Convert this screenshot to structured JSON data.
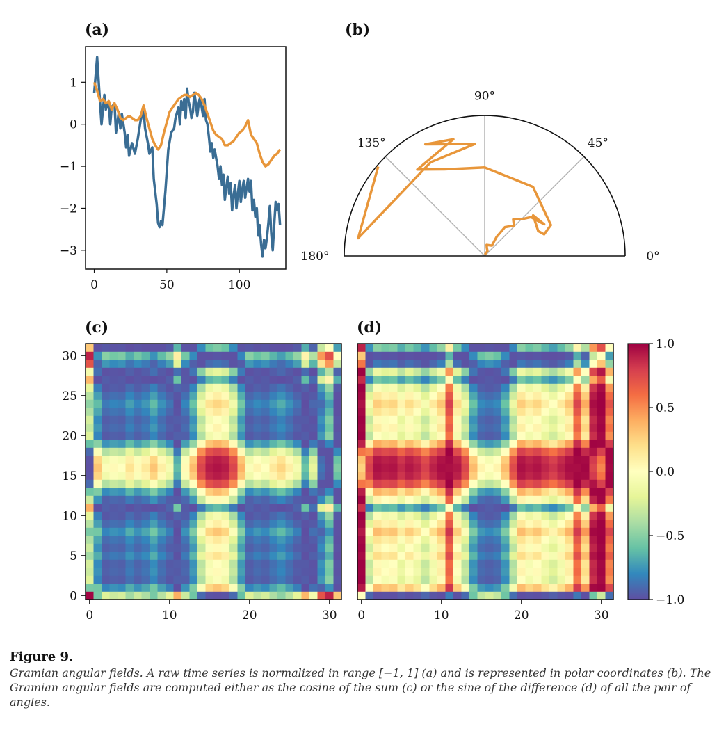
{
  "caption": {
    "title": "Figure 9.",
    "text": "Gramian angular fields. A raw time series is normalized in range [−1, 1] (a) and is represented in polar coordinates (b). The Gramian angular fields are computed either as the cosine of the sum (c) or the sine of the difference (d) of all the pair of angles."
  },
  "chart_data": [
    {
      "id": "a",
      "panel_label": "(a)",
      "type": "line",
      "xlim": [
        -6,
        132
      ],
      "ylim": [
        -3.45,
        1.85
      ],
      "xticks": [
        0,
        50,
        100
      ],
      "yticks": [
        1,
        0,
        -1,
        -2,
        -3
      ],
      "xtick_labels": [
        "0",
        "50",
        "100"
      ],
      "ytick_labels": [
        "1",
        "0",
        "−1",
        "−2",
        "−3"
      ],
      "series": [
        {
          "color": "#3a6d94",
          "points": [
            [
              0,
              0.75
            ],
            [
              2,
              1.6
            ],
            [
              4,
              0.5
            ],
            [
              5,
              0.0
            ],
            [
              7,
              0.7
            ],
            [
              8,
              0.35
            ],
            [
              10,
              0.55
            ],
            [
              11,
              0.0
            ],
            [
              12,
              0.4
            ],
            [
              14,
              0.5
            ],
            [
              15,
              -0.2
            ],
            [
              17,
              0.3
            ],
            [
              18,
              -0.1
            ],
            [
              19,
              0.25
            ],
            [
              21,
              -0.2
            ],
            [
              22,
              -0.55
            ],
            [
              23,
              -0.25
            ],
            [
              24,
              -0.75
            ],
            [
              26,
              -0.45
            ],
            [
              28,
              -0.7
            ],
            [
              30,
              -0.35
            ],
            [
              32,
              0.1
            ],
            [
              34,
              0.35
            ],
            [
              35,
              -0.1
            ],
            [
              37,
              -0.45
            ],
            [
              38,
              -0.7
            ],
            [
              40,
              -0.55
            ],
            [
              41,
              -1.3
            ],
            [
              43,
              -1.9
            ],
            [
              44,
              -2.35
            ],
            [
              45,
              -2.45
            ],
            [
              46,
              -2.3
            ],
            [
              47,
              -2.4
            ],
            [
              48,
              -2.0
            ],
            [
              49,
              -1.6
            ],
            [
              50,
              -1.1
            ],
            [
              51,
              -0.6
            ],
            [
              53,
              -0.2
            ],
            [
              55,
              -0.1
            ],
            [
              56,
              0.15
            ],
            [
              58,
              0.4
            ],
            [
              59,
              0.0
            ],
            [
              60,
              0.55
            ],
            [
              61,
              0.35
            ],
            [
              62,
              0.6
            ],
            [
              63,
              0.15
            ],
            [
              64,
              0.85
            ],
            [
              65,
              0.55
            ],
            [
              66,
              0.4
            ],
            [
              67,
              0.15
            ],
            [
              68,
              0.3
            ],
            [
              69,
              0.75
            ],
            [
              70,
              0.5
            ],
            [
              71,
              0.2
            ],
            [
              72,
              0.5
            ],
            [
              73,
              0.65
            ],
            [
              74,
              0.4
            ],
            [
              75,
              0.2
            ],
            [
              76,
              0.6
            ],
            [
              77,
              0.1
            ],
            [
              78,
              0.0
            ],
            [
              79,
              -0.3
            ],
            [
              80,
              -0.65
            ],
            [
              81,
              -0.45
            ],
            [
              82,
              -0.8
            ],
            [
              83,
              -0.6
            ],
            [
              85,
              -1.0
            ],
            [
              86,
              -1.3
            ],
            [
              87,
              -1.0
            ],
            [
              88,
              -1.45
            ],
            [
              89,
              -1.2
            ],
            [
              90,
              -1.8
            ],
            [
              91,
              -1.5
            ],
            [
              92,
              -1.25
            ],
            [
              93,
              -1.65
            ],
            [
              94,
              -1.4
            ],
            [
              95,
              -2.05
            ],
            [
              96,
              -1.7
            ],
            [
              97,
              -1.45
            ],
            [
              98,
              -2.0
            ],
            [
              99,
              -1.65
            ],
            [
              100,
              -1.35
            ],
            [
              101,
              -1.85
            ],
            [
              102,
              -1.55
            ],
            [
              103,
              -1.35
            ],
            [
              104,
              -1.75
            ],
            [
              105,
              -1.5
            ],
            [
              106,
              -1.3
            ],
            [
              107,
              -1.6
            ],
            [
              108,
              -1.35
            ],
            [
              109,
              -2.05
            ],
            [
              110,
              -1.8
            ],
            [
              111,
              -2.2
            ],
            [
              112,
              -2.0
            ],
            [
              113,
              -2.65
            ],
            [
              114,
              -2.4
            ],
            [
              115,
              -2.85
            ],
            [
              116,
              -3.15
            ],
            [
              117,
              -2.75
            ],
            [
              118,
              -2.95
            ],
            [
              119,
              -2.7
            ],
            [
              120,
              -2.35
            ],
            [
              121,
              -1.95
            ],
            [
              122,
              -2.6
            ],
            [
              123,
              -3.0
            ],
            [
              124,
              -2.4
            ],
            [
              125,
              -1.85
            ],
            [
              126,
              -2.05
            ],
            [
              127,
              -1.9
            ],
            [
              128,
              -2.4
            ]
          ]
        },
        {
          "color": "#e8963a",
          "points": [
            [
              0,
              1.0
            ],
            [
              2,
              0.8
            ],
            [
              4,
              0.55
            ],
            [
              6,
              0.6
            ],
            [
              8,
              0.5
            ],
            [
              10,
              0.55
            ],
            [
              12,
              0.35
            ],
            [
              14,
              0.5
            ],
            [
              16,
              0.35
            ],
            [
              18,
              0.15
            ],
            [
              20,
              0.1
            ],
            [
              22,
              0.15
            ],
            [
              24,
              0.2
            ],
            [
              26,
              0.15
            ],
            [
              28,
              0.1
            ],
            [
              30,
              0.1
            ],
            [
              32,
              0.2
            ],
            [
              34,
              0.45
            ],
            [
              36,
              0.15
            ],
            [
              38,
              -0.1
            ],
            [
              40,
              -0.35
            ],
            [
              42,
              -0.5
            ],
            [
              44,
              -0.6
            ],
            [
              46,
              -0.5
            ],
            [
              48,
              -0.2
            ],
            [
              50,
              0.05
            ],
            [
              52,
              0.3
            ],
            [
              54,
              0.4
            ],
            [
              56,
              0.5
            ],
            [
              58,
              0.6
            ],
            [
              60,
              0.65
            ],
            [
              62,
              0.7
            ],
            [
              64,
              0.7
            ],
            [
              66,
              0.65
            ],
            [
              68,
              0.7
            ],
            [
              70,
              0.75
            ],
            [
              72,
              0.7
            ],
            [
              74,
              0.6
            ],
            [
              76,
              0.45
            ],
            [
              78,
              0.25
            ],
            [
              80,
              0.05
            ],
            [
              82,
              -0.15
            ],
            [
              84,
              -0.25
            ],
            [
              86,
              -0.3
            ],
            [
              88,
              -0.35
            ],
            [
              90,
              -0.5
            ],
            [
              92,
              -0.5
            ],
            [
              94,
              -0.45
            ],
            [
              96,
              -0.4
            ],
            [
              98,
              -0.3
            ],
            [
              100,
              -0.2
            ],
            [
              102,
              -0.15
            ],
            [
              104,
              -0.05
            ],
            [
              106,
              0.1
            ],
            [
              108,
              -0.25
            ],
            [
              110,
              -0.35
            ],
            [
              112,
              -0.45
            ],
            [
              114,
              -0.7
            ],
            [
              116,
              -0.9
            ],
            [
              118,
              -1.0
            ],
            [
              120,
              -0.95
            ],
            [
              122,
              -0.85
            ],
            [
              124,
              -0.75
            ],
            [
              126,
              -0.7
            ],
            [
              128,
              -0.6
            ]
          ]
        }
      ]
    },
    {
      "id": "b",
      "panel_label": "(b)",
      "type": "polar-line",
      "theta_range_deg": [
        0,
        180
      ],
      "radius_max": 1.0,
      "theta_tick_labels": [
        {
          "deg": 0,
          "label": "0°"
        },
        {
          "deg": 45,
          "label": "45°"
        },
        {
          "deg": 90,
          "label": "90°"
        },
        {
          "deg": 135,
          "label": "135°"
        },
        {
          "deg": 180,
          "label": "180°"
        }
      ],
      "series": [
        {
          "color": "#e8963a",
          "points_theta_r": [
            [
              85,
              0.01
            ],
            [
              60,
              0.04
            ],
            [
              75,
              0.06
            ],
            [
              80,
              0.08
            ],
            [
              55,
              0.09
            ],
            [
              58,
              0.16
            ],
            [
              55,
              0.25
            ],
            [
              46,
              0.3
            ],
            [
              52,
              0.33
            ],
            [
              44,
              0.38
            ],
            [
              40,
              0.43
            ],
            [
              28,
              0.48
            ],
            [
              40,
              0.45
            ],
            [
              25,
              0.42
            ],
            [
              20,
              0.45
            ],
            [
              25,
              0.52
            ],
            [
              55,
              0.6
            ],
            [
              90,
              0.63
            ],
            [
              115,
              0.68
            ],
            [
              128,
              0.78
            ],
            [
              105,
              0.86
            ],
            [
              118,
              0.9
            ],
            [
              95,
              0.8
            ],
            [
              120,
              0.77
            ],
            [
              172,
              0.91
            ],
            [
              140,
              0.99
            ]
          ]
        }
      ]
    },
    {
      "id": "c",
      "panel_label": "(c)",
      "type": "heatmap",
      "size": 32,
      "vmin": -1,
      "vmax": 1,
      "colormap": "Spectral_r",
      "xticks": [
        0,
        10,
        20,
        30
      ],
      "yticks": [
        0,
        5,
        10,
        15,
        20,
        25,
        30
      ],
      "xtick_labels": [
        "0",
        "10",
        "20",
        "30"
      ],
      "ytick_labels": [
        "0",
        "5",
        "10",
        "15",
        "20",
        "25",
        "30"
      ],
      "series_phi_deg": [
        5,
        118,
        98,
        102,
        100,
        110,
        102,
        108,
        118,
        106,
        96,
        62,
        102,
        120,
        150,
        166,
        170,
        166,
        150,
        122,
        98,
        104,
        100,
        108,
        114,
        106,
        96,
        64,
        90,
        40,
        22,
        68
      ]
    },
    {
      "id": "d",
      "panel_label": "(d)",
      "type": "heatmap",
      "size": 32,
      "vmin": -1,
      "vmax": 1,
      "colormap": "Spectral_r",
      "xticks": [
        0,
        10,
        20,
        30
      ],
      "yticks": [],
      "xtick_labels": [
        "0",
        "10",
        "20",
        "30"
      ],
      "series_phi_deg": [
        5,
        118,
        98,
        102,
        100,
        110,
        102,
        108,
        118,
        106,
        96,
        62,
        102,
        120,
        150,
        166,
        170,
        166,
        150,
        122,
        98,
        104,
        100,
        108,
        114,
        106,
        96,
        64,
        90,
        40,
        22,
        68
      ]
    },
    {
      "id": "colorbar",
      "type": "colorbar",
      "vmin": -1,
      "vmax": 1,
      "colormap": "Spectral_r",
      "ticks": [
        1.0,
        0.5,
        0.0,
        -0.5,
        -1.0
      ],
      "tick_labels": [
        "1.0",
        "0.5",
        "0.0",
        "−0.5",
        "−1.0"
      ]
    }
  ]
}
